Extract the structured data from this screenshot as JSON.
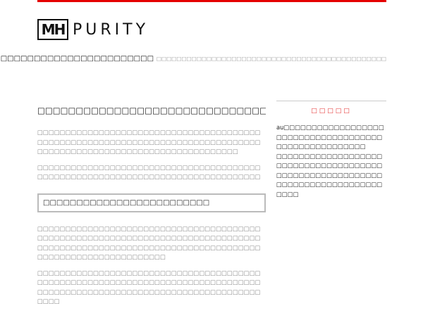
{
  "header": {
    "logo_mark": "MH",
    "logo_text": "PURITY",
    "accent_color": "#e50000",
    "nav_main": "□□□□□□□□□□□□□□□□□□□□□□□□",
    "nav_sub": "□□□□□□□□□□□□□□□□□□□□□□□□□□□□□□□□□□□□□□□□□□□□□□"
  },
  "main": {
    "title": "□□□□□□□□□□□□□□□□□□□□□□□□□□□□□□□□…",
    "paragraphs": [
      "□□□□□□□□□□□□□□□□□□□□□□□□□□□□□□□□□□□□□□□□□□□□□□□□□□□□□□□□□□□□□□□□□□□□□□□□□□□□□□□□□□□□□□□□□□□□□□□□□□□□□□□□□□□□□□□□□□□□",
      "□□□□□□□□□□□□□□□□□□□□□□□□□□□□□□□□□□□□□□□□□□□□□□□□□□□□□□□□□□□□□□□□□□□□□□□□□□□□□□□□"
    ],
    "subheading": "□□□□□□□□□□□□□□□□□□□□□□□□□",
    "paragraphs_2": [
      "□□□□□□□□□□□□□□□□□□□□□□□□□□□□□□□□□□□□□□□□□□□□□□□□□□□□□□□□□□□□□□□□□□□□□□□□□□□□□□□□□□□□□□□□□□□□□□□□□□□□□□□□□□□□□□□□□□□□□□□□□□□□□□□□□□□□□□□□□□□□□□□",
      "□□□□□□□□□□□□□□□□□□□□□□□□□□□□□□□□□□□□□□□□□□□□□□□□□□□□□□□□□□□□□□□□□□□□□□□□□□□□□□□□□□□□□□□□□□□□□□□□□□□□□□□□□□□□□□□□□□□□□□□□□□□□"
    ]
  },
  "sidebar": {
    "title": "□□□□□",
    "title_color": "#e53333",
    "paragraphs": [
      "au□□□□□□□□□□□□□□□□□□□□□□□□□□□□□□□□□□□□□□□□□□□□□□□□□□□□□",
      "□□□□□□□□□□□□□□□□□□□□□□□□□□□□□□□□□□□□□□□□□□□□□□□□□□□□□□□□□□□□□□□□□□□□□□□□□□□□□□□□"
    ]
  }
}
